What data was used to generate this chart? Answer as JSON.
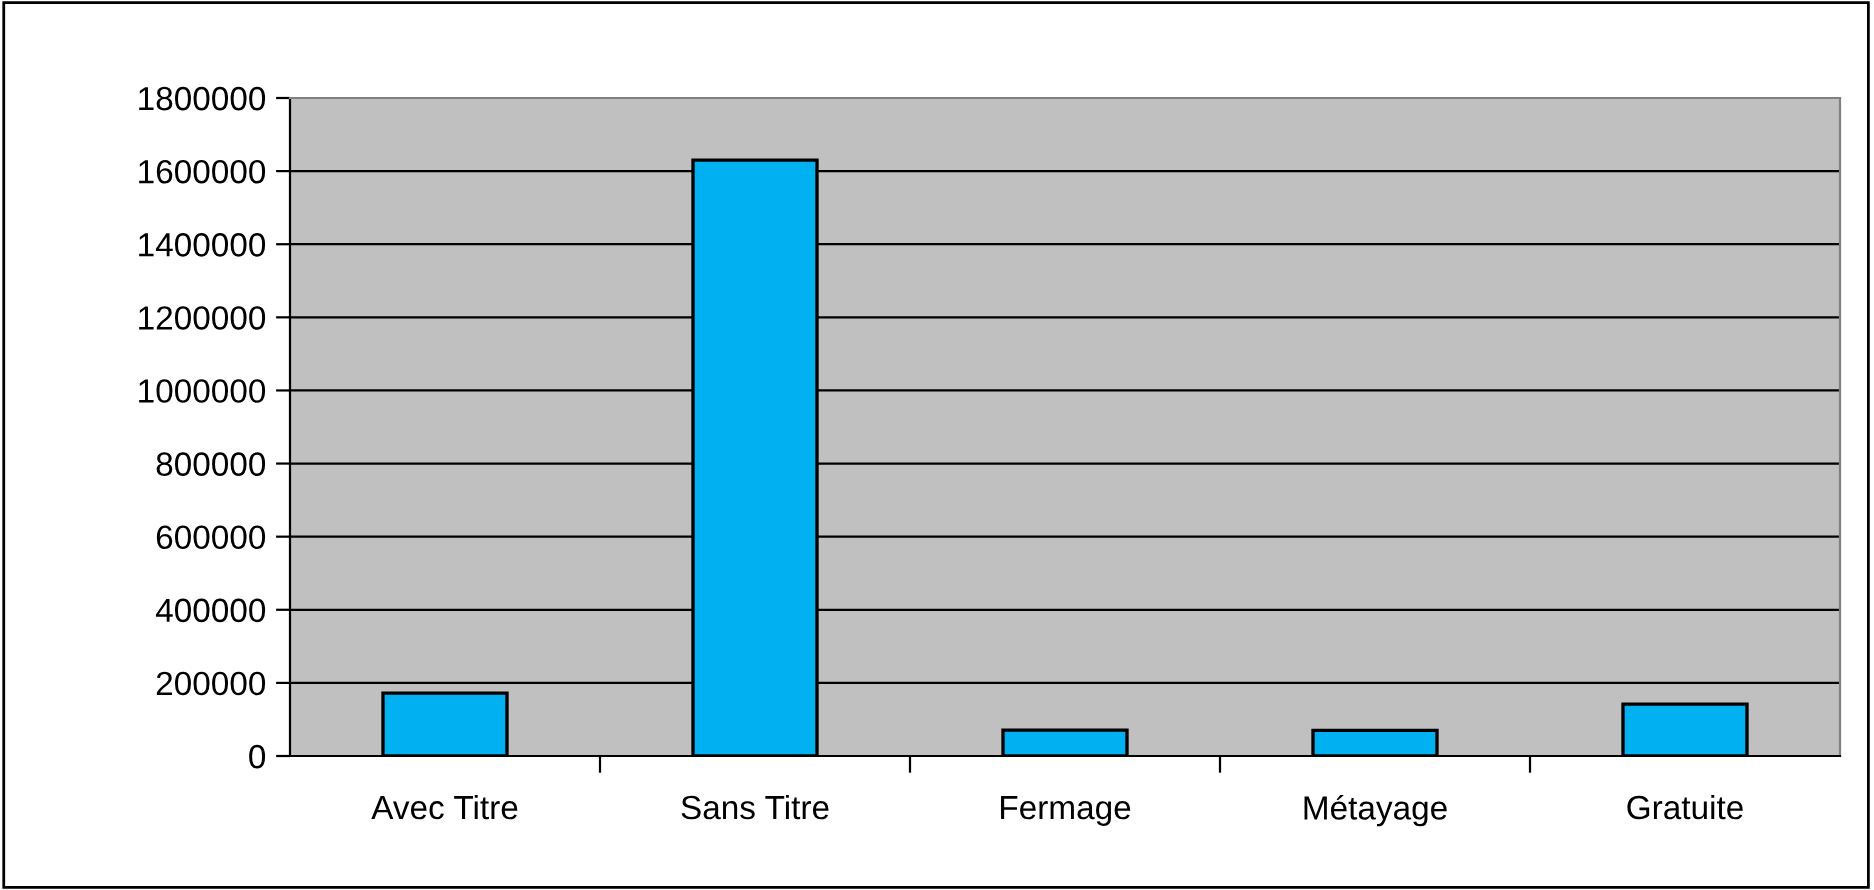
{
  "chart_data": {
    "type": "bar",
    "categories": [
      "Avec Titre",
      "Sans Titre",
      "Fermage",
      "Métayage",
      "Gratuite"
    ],
    "values": [
      172000,
      1630000,
      71000,
      70000,
      142000
    ],
    "color": "#00b0f0",
    "ylim": [
      0,
      1800000
    ],
    "yticks": [
      0,
      200000,
      400000,
      600000,
      800000,
      1000000,
      1200000,
      1400000,
      1600000,
      1800000
    ],
    "grid": "y"
  }
}
